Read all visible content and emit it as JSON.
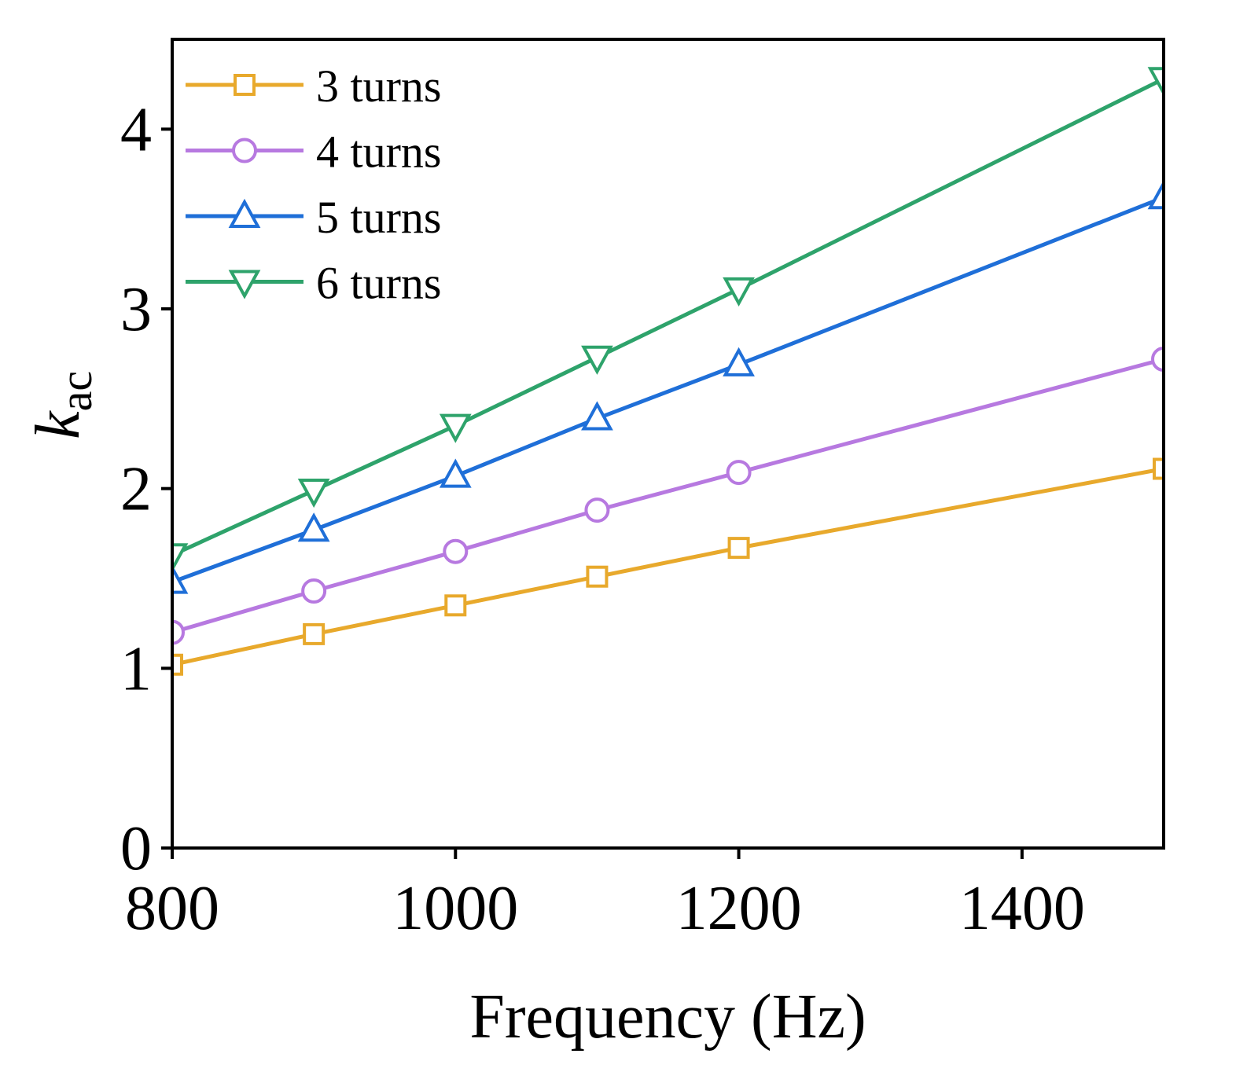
{
  "chart_data": {
    "type": "line",
    "title": "",
    "xlabel": "Frequency (Hz)",
    "ylabel": {
      "main": "k",
      "sub": "ac"
    },
    "xlim": [
      800,
      1500
    ],
    "ylim": [
      0,
      4.5
    ],
    "xticks": [
      800,
      1000,
      1200,
      1400
    ],
    "yticks": [
      0,
      1,
      2,
      3,
      4
    ],
    "xtick_labels": [
      "800",
      "1000",
      "1200",
      "1400"
    ],
    "ytick_labels": [
      "0",
      "1",
      "2",
      "3",
      "4"
    ],
    "grid": false,
    "legend_position": "top-left",
    "x": [
      800,
      900,
      1000,
      1100,
      1200,
      1500
    ],
    "series": [
      {
        "name": "3 turns",
        "marker": "square",
        "color": "#E8A92C",
        "values": [
          1.02,
          1.19,
          1.35,
          1.51,
          1.67,
          2.11
        ]
      },
      {
        "name": "4 turns",
        "marker": "circle",
        "color": "#B779E0",
        "values": [
          1.2,
          1.43,
          1.65,
          1.88,
          2.09,
          2.72
        ]
      },
      {
        "name": "5 turns",
        "marker": "triangle-up",
        "color": "#1F6FD8",
        "values": [
          1.48,
          1.77,
          2.07,
          2.39,
          2.69,
          3.62
        ]
      },
      {
        "name": "6 turns",
        "marker": "triangle-down",
        "color": "#2EA36B",
        "values": [
          1.63,
          1.99,
          2.35,
          2.73,
          3.11,
          4.28
        ]
      }
    ]
  }
}
